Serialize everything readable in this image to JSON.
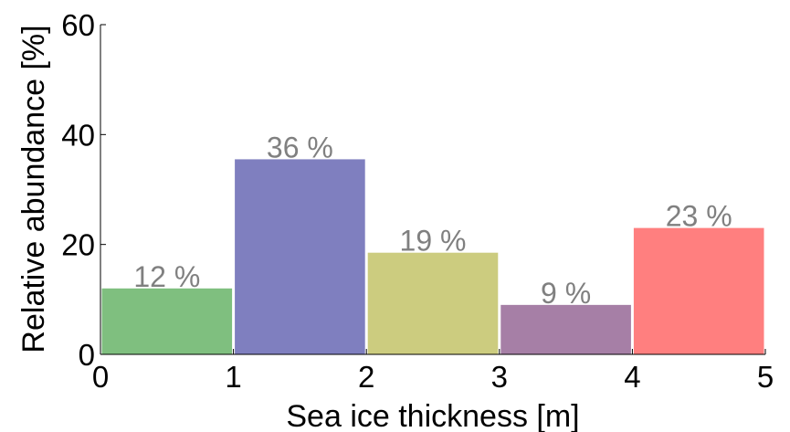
{
  "chart_data": {
    "type": "bar",
    "title": "",
    "xlabel": "Sea ice thickness [m]",
    "ylabel": "Relative abundance [%]",
    "xlim": [
      0,
      5
    ],
    "ylim": [
      0,
      60
    ],
    "x_ticks": [
      "0",
      "1",
      "2",
      "3",
      "4",
      "5"
    ],
    "y_ticks": [
      "0",
      "20",
      "40",
      "60"
    ],
    "grid": false,
    "legend": "none",
    "bins": [
      {
        "x_start": 0,
        "x_end": 1,
        "value": 12,
        "label": "12 %",
        "color": "#7fbf7f"
      },
      {
        "x_start": 1,
        "x_end": 2,
        "value": 35.5,
        "label": "36 %",
        "color": "#7f7fbf"
      },
      {
        "x_start": 2,
        "x_end": 3,
        "value": 18.5,
        "label": "19 %",
        "color": "#cccc7f"
      },
      {
        "x_start": 3,
        "x_end": 4,
        "value": 9,
        "label": "9 %",
        "color": "#a67fa6"
      },
      {
        "x_start": 4,
        "x_end": 5,
        "value": 23,
        "label": "23 %",
        "color": "#ff7f7f"
      }
    ]
  }
}
